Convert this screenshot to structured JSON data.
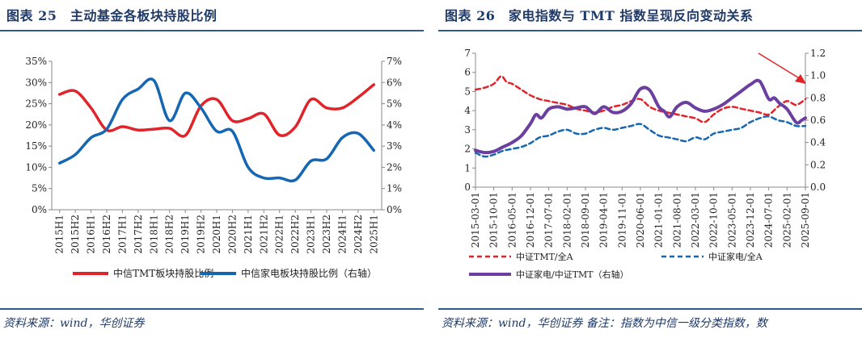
{
  "left": {
    "figure_title": "图表 25　主动基金各板块持股比例",
    "source": "资料来源：wind，华创证券"
  },
  "right": {
    "figure_title": "图表 26　家电指数与 TMT 指数呈现反向变动关系",
    "source": "资料来源：wind，华创证券 备注：指数为中信一级分类指数，数"
  },
  "chart_data": [
    {
      "type": "line",
      "title": "",
      "categories": [
        "2015H1",
        "2015H2",
        "2016H1",
        "2016H2",
        "2017H1",
        "2017H2",
        "2018H1",
        "2018H2",
        "2019H1",
        "2019H2",
        "2020H1",
        "2020H2",
        "2021H1",
        "2021H2",
        "2022H1",
        "2022H2",
        "2023H1",
        "2023H2",
        "2024H1",
        "2024H2",
        "2025H1"
      ],
      "y_left": {
        "ylim": [
          0,
          35
        ],
        "ticks": [
          "0%",
          "5%",
          "10%",
          "15%",
          "20%",
          "25%",
          "30%",
          "35%"
        ]
      },
      "y_right": {
        "ylim": [
          0,
          7
        ],
        "ticks": [
          "0%",
          "1%",
          "2%",
          "3%",
          "4%",
          "5%",
          "6%",
          "7%"
        ]
      },
      "grid": false,
      "legend_position": "bottom",
      "series": [
        {
          "name": "中信TMT板块持股比例",
          "axis": "left",
          "color": "#e0242a",
          "dash": "solid",
          "values": [
            27.2,
            28.0,
            24.0,
            18.8,
            19.6,
            18.8,
            19.0,
            19.2,
            17.5,
            24.5,
            26.0,
            21.0,
            21.5,
            22.6,
            17.6,
            19.5,
            26.0,
            24.0,
            24.0,
            26.5,
            29.5
          ]
        },
        {
          "name": "中信家电板块持股比例（右轴）",
          "axis": "right",
          "color": "#1667b3",
          "dash": "solid",
          "values": [
            2.2,
            2.6,
            3.4,
            3.8,
            5.2,
            5.7,
            6.1,
            4.2,
            5.5,
            4.8,
            3.7,
            3.7,
            2.0,
            1.5,
            1.5,
            1.4,
            2.3,
            2.4,
            3.4,
            3.6,
            2.8
          ]
        }
      ]
    },
    {
      "type": "line",
      "title": "",
      "categories": [
        "2015-03-01",
        "2015-10-01",
        "2016-05-01",
        "2016-12-01",
        "2017-07-01",
        "2018-02-01",
        "2018-09-01",
        "2019-04-01",
        "2019-11-01",
        "2020-06-01",
        "2021-01-01",
        "2021-08-01",
        "2022-03-01",
        "2022-10-01",
        "2023-05-01",
        "2023-12-01",
        "2024-07-01",
        "2025-02-01",
        "2025-09-01"
      ],
      "y_left": {
        "ylim": [
          0,
          7
        ],
        "ticks": [
          "0",
          "1",
          "2",
          "3",
          "4",
          "5",
          "6",
          "7"
        ]
      },
      "y_right": {
        "ylim": [
          0,
          1.2
        ],
        "ticks": [
          "0.0",
          "0.2",
          "0.4",
          "0.6",
          "0.8",
          "1.0",
          "1.2"
        ]
      },
      "grid": false,
      "legend_position": "bottom",
      "annotation": "red arrow pointing to upper-right end of chart",
      "series": [
        {
          "name": "中证TMT/全A",
          "axis": "left",
          "color": "#e0242a",
          "dash": "dashed",
          "x": [
            0,
            0.5,
            1.0,
            1.4,
            1.7,
            2.0,
            2.5,
            3.0,
            3.5,
            4.0,
            4.5,
            5.0,
            5.5,
            6.0,
            6.5,
            7.0,
            7.5,
            8.0,
            8.5,
            9.0,
            9.5,
            10.0,
            10.5,
            11.0,
            11.5,
            12.0,
            12.5,
            13.0,
            13.5,
            14.0,
            14.5,
            15.0,
            15.5,
            16.0,
            16.5,
            17.0,
            17.5,
            18.0
          ],
          "values": [
            5.1,
            5.2,
            5.4,
            5.8,
            5.5,
            5.4,
            5.1,
            4.8,
            4.6,
            4.5,
            4.4,
            4.3,
            4.1,
            4.0,
            3.9,
            4.0,
            4.2,
            4.3,
            4.5,
            4.6,
            4.2,
            4.0,
            3.9,
            3.8,
            3.7,
            3.6,
            3.4,
            3.8,
            4.1,
            4.2,
            4.1,
            4.0,
            3.9,
            3.8,
            4.2,
            4.5,
            4.3,
            4.6
          ]
        },
        {
          "name": "中证家电/全A",
          "axis": "left",
          "color": "#1667b3",
          "dash": "dashed",
          "x": [
            0,
            0.5,
            1.0,
            1.5,
            2.0,
            2.5,
            3.0,
            3.5,
            4.0,
            4.5,
            5.0,
            5.5,
            6.0,
            6.5,
            7.0,
            7.5,
            8.0,
            8.5,
            9.0,
            9.5,
            10.0,
            10.5,
            11.0,
            11.5,
            12.0,
            12.5,
            13.0,
            13.5,
            14.0,
            14.5,
            15.0,
            15.5,
            16.0,
            16.5,
            17.0,
            17.5,
            18.0
          ],
          "values": [
            1.8,
            1.6,
            1.7,
            1.9,
            2.0,
            2.1,
            2.3,
            2.6,
            2.7,
            2.9,
            3.0,
            2.8,
            2.8,
            3.0,
            3.1,
            3.0,
            3.1,
            3.2,
            3.3,
            3.0,
            2.7,
            2.6,
            2.5,
            2.4,
            2.6,
            2.5,
            2.8,
            2.9,
            3.0,
            3.1,
            3.4,
            3.6,
            3.7,
            3.5,
            3.4,
            3.2,
            3.2
          ]
        },
        {
          "name": "中证家电/中证TMT（右轴）",
          "axis": "right",
          "color": "#6b3fa0",
          "dash": "solid",
          "x": [
            0,
            0.5,
            1.0,
            1.5,
            2.0,
            2.5,
            3.0,
            3.3,
            3.6,
            4.0,
            4.5,
            5.0,
            5.5,
            6.0,
            6.5,
            7.0,
            7.5,
            8.0,
            8.5,
            9.0,
            9.5,
            10.0,
            10.3,
            10.6,
            11.0,
            11.5,
            12.0,
            12.5,
            13.0,
            13.5,
            14.0,
            14.5,
            15.0,
            15.5,
            16.0,
            16.3,
            16.6,
            17.0,
            17.5,
            17.8,
            18.0
          ],
          "values": [
            0.33,
            0.31,
            0.32,
            0.36,
            0.4,
            0.46,
            0.57,
            0.65,
            0.62,
            0.7,
            0.72,
            0.7,
            0.71,
            0.72,
            0.66,
            0.72,
            0.67,
            0.68,
            0.75,
            0.88,
            0.87,
            0.72,
            0.68,
            0.63,
            0.72,
            0.76,
            0.71,
            0.68,
            0.7,
            0.74,
            0.8,
            0.86,
            0.92,
            0.95,
            0.79,
            0.8,
            0.75,
            0.7,
            0.58,
            0.6,
            0.62
          ]
        }
      ]
    }
  ]
}
